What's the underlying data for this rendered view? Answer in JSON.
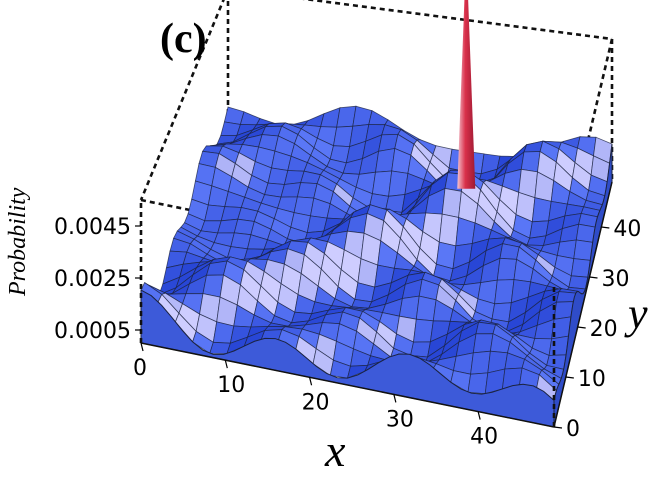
{
  "panel_label": "(c)",
  "chart_data": {
    "type": "surface3d",
    "title": "",
    "xlabel": "x",
    "ylabel": "y",
    "zlabel": "Probability",
    "x_ticks": [
      "0",
      "10",
      "20",
      "30",
      "40"
    ],
    "y_ticks": [
      "0",
      "10",
      "20",
      "30",
      "40"
    ],
    "z_ticks": [
      "0.0005",
      "0.0025",
      "0.0045"
    ],
    "xlim": [
      0,
      49
    ],
    "ylim": [
      0,
      49
    ],
    "zlim": [
      0,
      0.0055
    ],
    "grid": false,
    "box": "dashed",
    "surface_color": "#4a6cf0",
    "peak_color": "#d9304a",
    "peak": {
      "x": 32,
      "y": 40,
      "z": 0.0099
    },
    "background_level": 0.0009
  }
}
